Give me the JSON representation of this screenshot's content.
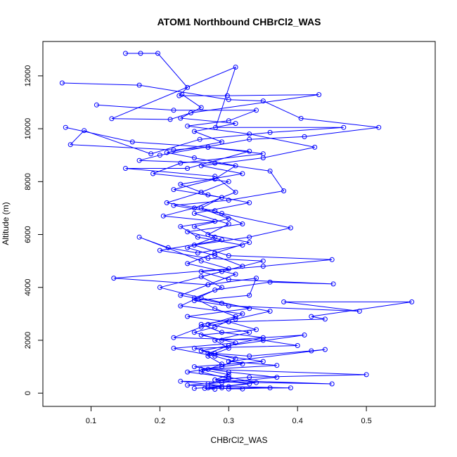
{
  "chart_data": {
    "type": "line",
    "title": "ATOM1 Northbound CHBrCl2_WAS",
    "xlabel": "CHBrCl2_WAS",
    "ylabel": "Altitude (m)",
    "xlim": [
      0.03,
      0.6
    ],
    "ylim": [
      -500,
      13300
    ],
    "xticks": [
      "0.1",
      "0.2",
      "0.3",
      "0.4",
      "0.5"
    ],
    "yticks": [
      "0",
      "2000",
      "4000",
      "6000",
      "8000",
      "10000",
      "12000"
    ],
    "grid": false,
    "legend": "none",
    "series": [
      {
        "color": "#0000ff",
        "marker": "open-circle",
        "points": [
          [
            0.15,
            12850
          ],
          [
            0.172,
            12850
          ],
          [
            0.197,
            12850
          ],
          [
            0.24,
            11560
          ],
          [
            0.228,
            11250
          ],
          [
            0.298,
            11250
          ],
          [
            0.431,
            11290
          ],
          [
            0.245,
            10600
          ],
          [
            0.215,
            10350
          ],
          [
            0.13,
            10380
          ],
          [
            0.31,
            12330
          ],
          [
            0.281,
            10050
          ],
          [
            0.467,
            10050
          ],
          [
            0.36,
            9860
          ],
          [
            0.258,
            9600
          ],
          [
            0.187,
            9050
          ],
          [
            0.09,
            9930
          ],
          [
            0.07,
            9400
          ],
          [
            0.22,
            9200
          ],
          [
            0.27,
            9300
          ],
          [
            0.33,
            9150
          ],
          [
            0.24,
            8500
          ],
          [
            0.15,
            8500
          ],
          [
            0.28,
            8200
          ],
          [
            0.31,
            7600
          ],
          [
            0.25,
            7000
          ],
          [
            0.205,
            6700
          ],
          [
            0.28,
            6500
          ],
          [
            0.23,
            6300
          ],
          [
            0.255,
            5900
          ],
          [
            0.32,
            5600
          ],
          [
            0.255,
            5300
          ],
          [
            0.212,
            5500
          ],
          [
            0.17,
            5900
          ],
          [
            0.26,
            5000
          ],
          [
            0.3,
            4700
          ],
          [
            0.133,
            4350
          ],
          [
            0.27,
            4100
          ],
          [
            0.34,
            4350
          ],
          [
            0.33,
            3700
          ],
          [
            0.25,
            3500
          ],
          [
            0.3,
            3300
          ],
          [
            0.49,
            3100
          ],
          [
            0.38,
            3450
          ],
          [
            0.566,
            3450
          ],
          [
            0.42,
            2900
          ],
          [
            0.44,
            2800
          ],
          [
            0.3,
            2700
          ],
          [
            0.26,
            2500
          ],
          [
            0.22,
            2100
          ],
          [
            0.35,
            2000
          ],
          [
            0.4,
            1800
          ],
          [
            0.25,
            1700
          ],
          [
            0.28,
            1500
          ],
          [
            0.33,
            1400
          ],
          [
            0.42,
            1600
          ],
          [
            0.44,
            1650
          ],
          [
            0.3,
            1200
          ],
          [
            0.37,
            1050
          ],
          [
            0.27,
            900
          ],
          [
            0.5,
            700
          ],
          [
            0.33,
            600
          ],
          [
            0.28,
            500
          ],
          [
            0.45,
            350
          ],
          [
            0.23,
            450
          ],
          [
            0.3,
            250
          ],
          [
            0.39,
            200
          ],
          [
            0.265,
            180
          ],
          [
            0.28,
            150
          ]
        ]
      },
      {
        "color": "#0000ff",
        "marker": "open-circle",
        "points": [
          [
            0.058,
            11730
          ],
          [
            0.17,
            11650
          ],
          [
            0.3,
            11100
          ],
          [
            0.35,
            11050
          ],
          [
            0.405,
            10390
          ],
          [
            0.518,
            10050
          ],
          [
            0.41,
            9700
          ],
          [
            0.33,
            9600
          ],
          [
            0.2,
            9000
          ],
          [
            0.17,
            8800
          ],
          [
            0.28,
            8700
          ],
          [
            0.36,
            8400
          ],
          [
            0.38,
            7650
          ],
          [
            0.3,
            7300
          ],
          [
            0.22,
            7100
          ],
          [
            0.29,
            6800
          ],
          [
            0.39,
            6250
          ],
          [
            0.33,
            5900
          ],
          [
            0.25,
            5600
          ],
          [
            0.3,
            5200
          ],
          [
            0.45,
            5050
          ],
          [
            0.35,
            4800
          ],
          [
            0.26,
            4600
          ],
          [
            0.3,
            4300
          ],
          [
            0.452,
            4130
          ],
          [
            0.36,
            4200
          ],
          [
            0.28,
            3900
          ],
          [
            0.23,
            3300
          ],
          [
            0.32,
            3000
          ],
          [
            0.28,
            2500
          ],
          [
            0.25,
            2300
          ],
          [
            0.29,
            2000
          ],
          [
            0.41,
            2200
          ],
          [
            0.3,
            1800
          ],
          [
            0.27,
            1500
          ],
          [
            0.35,
            1200
          ],
          [
            0.25,
            1000
          ],
          [
            0.3,
            800
          ],
          [
            0.37,
            600
          ],
          [
            0.29,
            400
          ],
          [
            0.24,
            300
          ],
          [
            0.36,
            200
          ],
          [
            0.3,
            160
          ]
        ]
      },
      {
        "color": "#0000ff",
        "marker": "open-circle",
        "points": [
          [
            0.063,
            10050
          ],
          [
            0.16,
            9500
          ],
          [
            0.27,
            9300
          ],
          [
            0.35,
            9050
          ],
          [
            0.23,
            8700
          ],
          [
            0.19,
            8300
          ],
          [
            0.3,
            8000
          ],
          [
            0.26,
            7600
          ],
          [
            0.21,
            7200
          ],
          [
            0.28,
            6900
          ],
          [
            0.32,
            6400
          ],
          [
            0.24,
            6100
          ],
          [
            0.29,
            5800
          ],
          [
            0.2,
            5400
          ],
          [
            0.27,
            5100
          ],
          [
            0.35,
            5000
          ],
          [
            0.29,
            4600
          ],
          [
            0.2,
            4000
          ],
          [
            0.26,
            3600
          ],
          [
            0.33,
            3200
          ],
          [
            0.24,
            2900
          ],
          [
            0.3,
            2700
          ],
          [
            0.34,
            2400
          ],
          [
            0.26,
            2200
          ],
          [
            0.31,
            1900
          ],
          [
            0.22,
            1700
          ],
          [
            0.28,
            1400
          ],
          [
            0.32,
            1100
          ],
          [
            0.26,
            900
          ],
          [
            0.3,
            700
          ],
          [
            0.28,
            500
          ],
          [
            0.33,
            350
          ],
          [
            0.27,
            200
          ],
          [
            0.32,
            160
          ]
        ]
      },
      {
        "color": "#0000ff",
        "marker": "open-circle",
        "points": [
          [
            0.108,
            10900
          ],
          [
            0.22,
            10700
          ],
          [
            0.34,
            10700
          ],
          [
            0.3,
            10300
          ],
          [
            0.24,
            10100
          ],
          [
            0.33,
            9800
          ],
          [
            0.425,
            9300
          ],
          [
            0.35,
            8900
          ],
          [
            0.26,
            8600
          ],
          [
            0.32,
            8300
          ],
          [
            0.23,
            7900
          ],
          [
            0.27,
            7500
          ],
          [
            0.33,
            7200
          ],
          [
            0.25,
            6800
          ],
          [
            0.3,
            6400
          ],
          [
            0.27,
            6000
          ],
          [
            0.33,
            5700
          ],
          [
            0.28,
            5300
          ],
          [
            0.24,
            4900
          ],
          [
            0.31,
            4500
          ],
          [
            0.27,
            4100
          ],
          [
            0.23,
            3700
          ],
          [
            0.29,
            3400
          ],
          [
            0.36,
            3100
          ],
          [
            0.31,
            2800
          ],
          [
            0.26,
            2600
          ],
          [
            0.29,
            2300
          ],
          [
            0.35,
            2100
          ],
          [
            0.3,
            1800
          ],
          [
            0.26,
            1600
          ],
          [
            0.31,
            1300
          ],
          [
            0.29,
            1000
          ],
          [
            0.24,
            800
          ],
          [
            0.3,
            600
          ],
          [
            0.34,
            400
          ],
          [
            0.29,
            250
          ],
          [
            0.25,
            180
          ]
        ]
      },
      {
        "color": "#0000ff",
        "marker": "open-circle",
        "points": [
          [
            0.232,
            11300
          ],
          [
            0.26,
            10800
          ],
          [
            0.23,
            10400
          ],
          [
            0.31,
            10200
          ],
          [
            0.25,
            9900
          ],
          [
            0.29,
            9500
          ],
          [
            0.21,
            9100
          ],
          [
            0.25,
            8900
          ],
          [
            0.31,
            8600
          ],
          [
            0.28,
            8100
          ],
          [
            0.22,
            7700
          ],
          [
            0.29,
            7400
          ],
          [
            0.26,
            7000
          ],
          [
            0.3,
            6600
          ],
          [
            0.25,
            6300
          ],
          [
            0.28,
            5900
          ],
          [
            0.24,
            5500
          ],
          [
            0.28,
            5200
          ],
          [
            0.32,
            4800
          ],
          [
            0.26,
            4400
          ],
          [
            0.29,
            4000
          ],
          [
            0.25,
            3600
          ],
          [
            0.28,
            3200
          ],
          [
            0.31,
            2900
          ],
          [
            0.27,
            2600
          ],
          [
            0.33,
            2300
          ],
          [
            0.28,
            2000
          ],
          [
            0.3,
            1700
          ],
          [
            0.27,
            1400
          ],
          [
            0.29,
            1100
          ],
          [
            0.26,
            800
          ],
          [
            0.3,
            550
          ],
          [
            0.27,
            350
          ],
          [
            0.29,
            200
          ]
        ]
      }
    ]
  }
}
